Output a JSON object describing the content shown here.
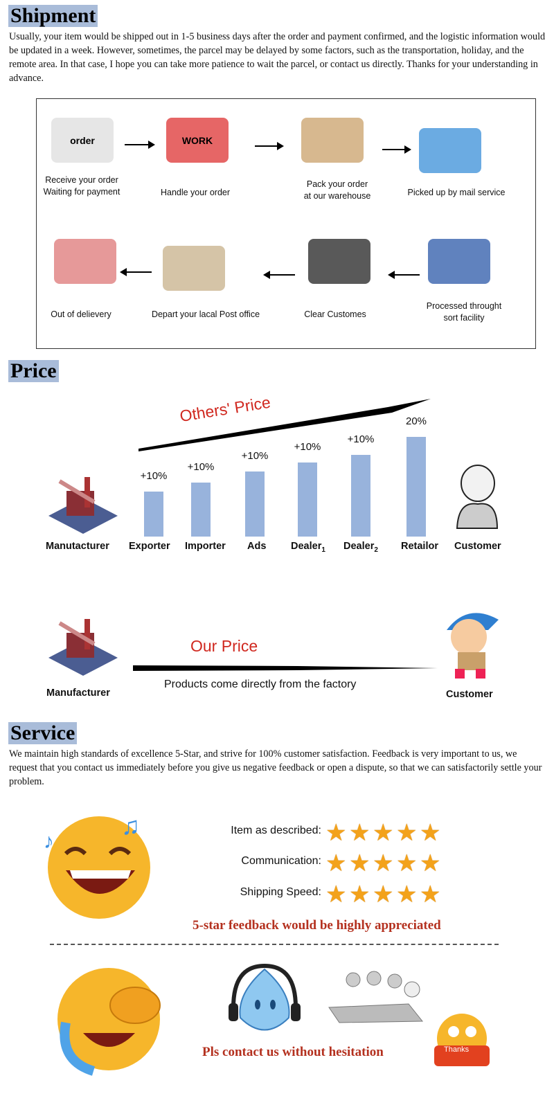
{
  "shipment": {
    "title": "Shipment",
    "text": "Usually, your item would be shipped out in 1-5 business days after the order and  payment confirmed, and the logistic information would be updated in a week. However, sometimes, the parcel may be delayed by some factors, such as the transportation, holiday, and the remote area. In that case, I hope you can take more patience to wait the parcel, or contact us directly. Thanks for your understanding in advance.",
    "steps": [
      {
        "label1": "Receive your order",
        "label2": "Waiting for payment",
        "icon": "computer-order-icon",
        "icon_text": "order"
      },
      {
        "label1": "Handle your order",
        "label2": "",
        "icon": "work-printer-icon",
        "icon_text": "WORK"
      },
      {
        "label1": "Pack your order",
        "label2": "at our warehouse",
        "icon": "boxes-icon"
      },
      {
        "label1": "Picked up by mail service",
        "label2": "",
        "icon": "truck-forklift-icon"
      },
      {
        "label1": "Processed throught",
        "label2": "sort facility",
        "icon": "globe-parcels-icon"
      },
      {
        "label1": "Clear Customes",
        "label2": "",
        "icon": "customs-officer-icon"
      },
      {
        "label1": "Depart your lacal Post office",
        "label2": "",
        "icon": "delivery-truck-icon"
      },
      {
        "label1": "Out of delievery",
        "label2": "",
        "icon": "gift-person-icon"
      }
    ]
  },
  "price": {
    "title": "Price",
    "others_label": "Others' Price",
    "chain": [
      {
        "name": "Manutacturer",
        "pct": ""
      },
      {
        "name": "Exporter",
        "pct": "+10%"
      },
      {
        "name": "Importer",
        "pct": "+10%"
      },
      {
        "name": "Ads",
        "pct": "+10%"
      },
      {
        "name": "Dealer",
        "sub": "1",
        "pct": "+10%"
      },
      {
        "name": "Dealer",
        "sub": "2",
        "pct": "+10%"
      },
      {
        "name": "Retailor",
        "pct": "20%"
      },
      {
        "name": "Customer",
        "pct": ""
      }
    ],
    "bar_color": "#98b3dc",
    "our_label": "Our Price",
    "our_sub": "Products come directly from the factory",
    "our_from": "Manufacturer",
    "our_to": "Customer"
  },
  "service": {
    "title": "Service",
    "text": "We maintain high standards of excellence 5-Star, and strive for 100% customer satisfaction. Feedback is very important to us, we request that you contact us immediately before you give us negative feedback or open a dispute, so that we can satisfactorily settle your problem.",
    "ratings": [
      {
        "label": "Item as described:",
        "stars": 5
      },
      {
        "label": "Communication:",
        "stars": 5
      },
      {
        "label": "Shipping Speed:",
        "stars": 5
      }
    ],
    "feedback": "5-star feedback would be highly appreciated",
    "contact": "Pls contact us without hesitation",
    "thanks": "Thanks",
    "accent": "#b4311f",
    "star_color": "#f3a21b"
  }
}
